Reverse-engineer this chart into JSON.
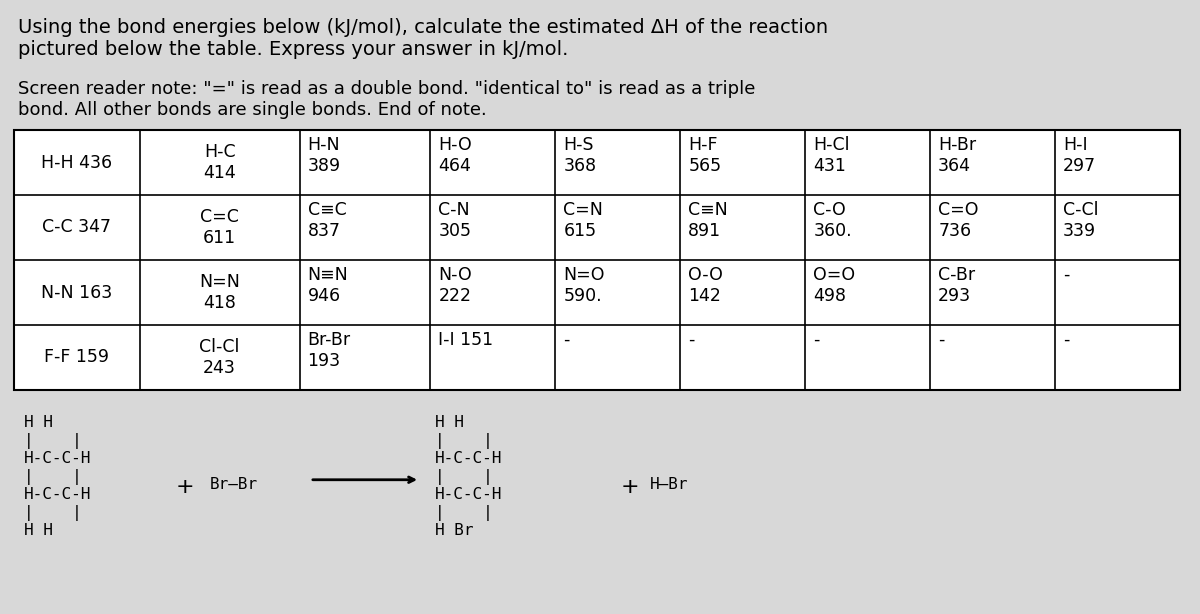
{
  "title_line1": "Using the bond energies below (kJ/mol), calculate the estimated ΔH of the reaction",
  "title_line2": "pictured below the table. Express your answer in kJ/mol.",
  "note_line1": "Screen reader note: \"=\" is read as a double bond. \"identical to\" is read as a triple",
  "note_line2": "bond. All other bonds are single bonds. End of note.",
  "bg_color": "#d8d8d8",
  "table_font_size": 12.5,
  "title_font_size": 14,
  "note_font_size": 13,
  "cell_data": [
    [
      [
        "H-H 436",
        "H-C\n414"
      ],
      [
        "H-N\n389",
        null
      ],
      [
        "H-O\n464",
        null
      ],
      [
        "H-S\n368",
        null
      ],
      [
        "H-F\n565",
        null
      ],
      [
        "H-Cl\n431",
        null
      ],
      [
        "H-Br\n364",
        null
      ],
      [
        "H-I\n297",
        null
      ]
    ],
    [
      [
        "C-C 347",
        "C=C\n611"
      ],
      [
        "C≡C\n837",
        null
      ],
      [
        "C-N\n305",
        null
      ],
      [
        "C=N\n615",
        null
      ],
      [
        "C≡N\n891",
        null
      ],
      [
        "C-O\n360.",
        null
      ],
      [
        "C=O\n736",
        null
      ],
      [
        "C-Cl\n339",
        null
      ]
    ],
    [
      [
        "N-N 163",
        "N=N\n418"
      ],
      [
        "N≡N\n946",
        null
      ],
      [
        "N-O\n222",
        null
      ],
      [
        "N=O\n590.",
        null
      ],
      [
        "O-O\n142",
        null
      ],
      [
        "O=O\n498",
        null
      ],
      [
        "C-Br\n293",
        null
      ],
      [
        "-",
        null
      ]
    ],
    [
      [
        "F-F 159",
        "Cl-Cl\n243"
      ],
      [
        "Br-Br\n193",
        null
      ],
      [
        "I-I 151",
        null
      ],
      [
        "-",
        null
      ],
      [
        "-",
        null
      ],
      [
        "-",
        null
      ],
      [
        "-",
        null
      ],
      [
        "-",
        null
      ]
    ]
  ],
  "col_widths_rel": [
    2.4,
    1.1,
    1.05,
    1.05,
    1.05,
    1.05,
    1.05,
    1.05
  ],
  "first_col_split": 0.44
}
